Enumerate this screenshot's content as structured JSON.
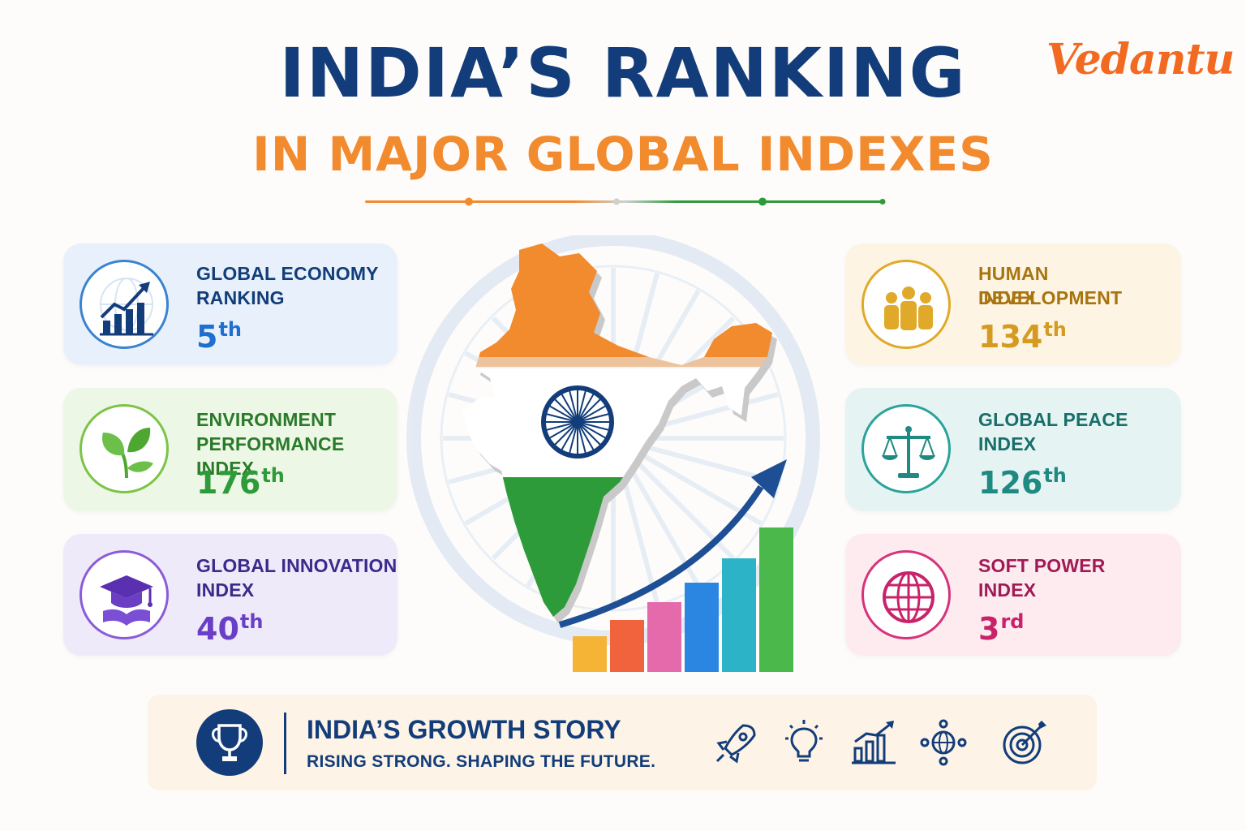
{
  "brand": {
    "name": "Vedantu"
  },
  "title": {
    "line1": "INDIA’S RANKING",
    "line2": "IN MAJOR GLOBAL INDEXES"
  },
  "colors": {
    "navy": "#123d7a",
    "saffron": "#f28a2e",
    "green": "#2e9b3a",
    "brand": "#f26a21"
  },
  "left_cards": [
    {
      "line1": "GLOBAL ECONOMY",
      "line2": "RANKING",
      "rank_num": "5",
      "rank_suffix": "th",
      "icon": "growth-chart-icon"
    },
    {
      "line1": "ENVIRONMENT",
      "line2": "PERFORMANCE INDEX",
      "rank_num": "176",
      "rank_suffix": "th",
      "icon": "leaf-icon"
    },
    {
      "line1": "GLOBAL INNOVATION",
      "line2": "INDEX",
      "rank_num": "40",
      "rank_suffix": "th",
      "icon": "graduation-cap-icon"
    }
  ],
  "right_cards": [
    {
      "line1": "HUMAN DEVELOPMENT",
      "line2": "INDEX",
      "rank_num": "134",
      "rank_suffix": "th",
      "icon": "people-icon"
    },
    {
      "line1": "GLOBAL PEACE",
      "line2": "INDEX",
      "rank_num": "126",
      "rank_suffix": "th",
      "icon": "scales-icon"
    },
    {
      "line1": "SOFT POWER",
      "line2": "INDEX",
      "rank_num": "3",
      "rank_suffix": "rd",
      "icon": "globe-icon"
    }
  ],
  "banner": {
    "title": "INDIA’S GROWTH STORY",
    "subtitle": "RISING STRONG. SHAPING THE FUTURE.",
    "icons": [
      "trophy-icon",
      "rocket-icon",
      "lightbulb-icon",
      "bar-chart-icon",
      "network-globe-icon",
      "target-icon"
    ]
  }
}
